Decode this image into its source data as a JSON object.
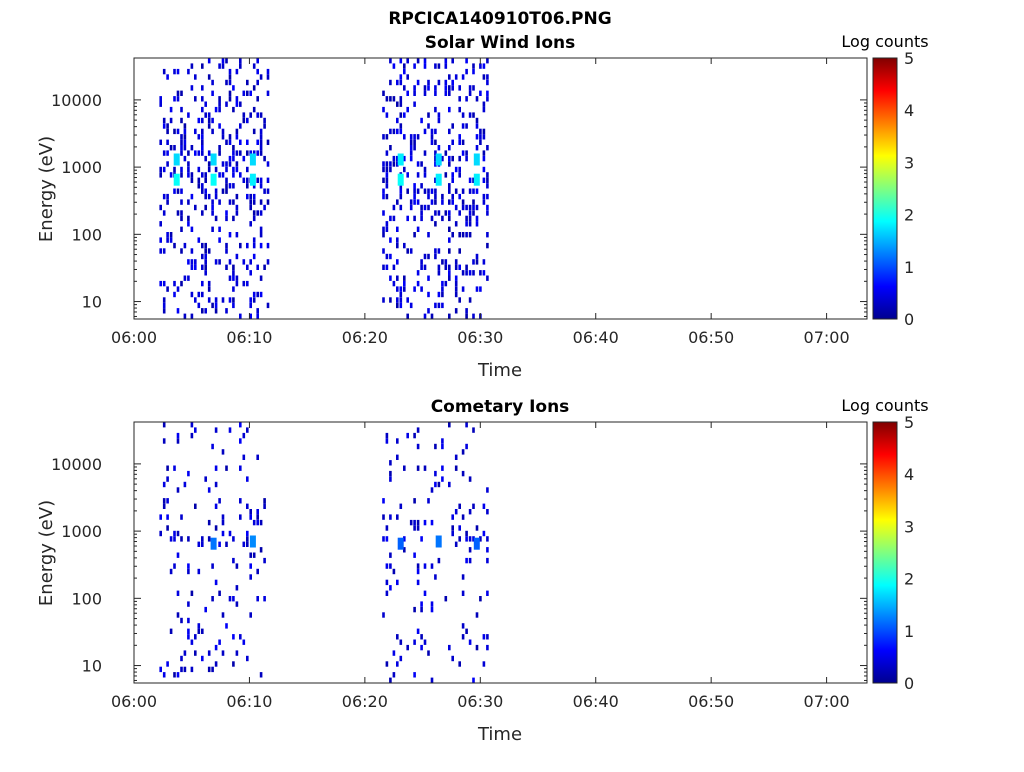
{
  "figure": {
    "title": "RPCICA140910T06.PNG"
  },
  "colorscale": {
    "stops": [
      "#00008f",
      "#0000ff",
      "#00ffff",
      "#ffff00",
      "#ff0000",
      "#800000"
    ],
    "label": "Log counts",
    "min": 0,
    "max": 5,
    "ticks": [
      0,
      1,
      2,
      3,
      4,
      5
    ]
  },
  "chart_data": [
    {
      "type": "heatmap",
      "title": "Solar Wind Ions",
      "xlabel": "Time",
      "ylabel": "Energy (eV)",
      "x_ticks": [
        "06:00",
        "06:10",
        "06:20",
        "06:30",
        "06:40",
        "06:50",
        "07:00"
      ],
      "x_range_minutes": [
        0,
        63.5
      ],
      "y_scale": "log",
      "y_ticks": [
        10,
        100,
        1000,
        10000
      ],
      "y_tick_labels": [
        "10",
        "100",
        "1000",
        "10000"
      ],
      "y_range": [
        5.5,
        42000
      ],
      "colorbar_label": "Log counts",
      "bursts": [
        {
          "start_min": 2.2,
          "end_min": 11.8
        },
        {
          "start_min": 21.5,
          "end_min": 30.8
        }
      ],
      "peaks": [
        {
          "time_min": 3.7,
          "energy_ev": 650,
          "log_counts": 1.9
        },
        {
          "time_min": 3.7,
          "energy_ev": 1300,
          "log_counts": 1.7
        },
        {
          "time_min": 6.9,
          "energy_ev": 650,
          "log_counts": 1.9
        },
        {
          "time_min": 6.9,
          "energy_ev": 1300,
          "log_counts": 1.7
        },
        {
          "time_min": 10.3,
          "energy_ev": 650,
          "log_counts": 1.8
        },
        {
          "time_min": 10.3,
          "energy_ev": 1300,
          "log_counts": 1.7
        },
        {
          "time_min": 23.1,
          "energy_ev": 650,
          "log_counts": 1.9
        },
        {
          "time_min": 23.1,
          "energy_ev": 1300,
          "log_counts": 1.8
        },
        {
          "time_min": 26.4,
          "energy_ev": 650,
          "log_counts": 1.8
        },
        {
          "time_min": 26.4,
          "energy_ev": 1300,
          "log_counts": 1.7
        },
        {
          "time_min": 29.7,
          "energy_ev": 650,
          "log_counts": 1.8
        },
        {
          "time_min": 29.7,
          "energy_ev": 1300,
          "log_counts": 1.7
        }
      ]
    },
    {
      "type": "heatmap",
      "title": "Cometary Ions",
      "xlabel": "Time",
      "ylabel": "Energy (eV)",
      "x_ticks": [
        "06:00",
        "06:10",
        "06:20",
        "06:30",
        "06:40",
        "06:50",
        "07:00"
      ],
      "x_range_minutes": [
        0,
        63.5
      ],
      "y_scale": "log",
      "y_ticks": [
        10,
        100,
        1000,
        10000
      ],
      "y_tick_labels": [
        "10",
        "100",
        "1000",
        "10000"
      ],
      "y_range": [
        5.5,
        42000
      ],
      "colorbar_label": "Log counts",
      "bursts": [
        {
          "start_min": 2.2,
          "end_min": 11.5
        },
        {
          "start_min": 21.5,
          "end_min": 30.8
        }
      ],
      "peaks": [
        {
          "time_min": 6.9,
          "energy_ev": 650,
          "log_counts": 1.2
        },
        {
          "time_min": 10.3,
          "energy_ev": 700,
          "log_counts": 1.3
        },
        {
          "time_min": 23.1,
          "energy_ev": 650,
          "log_counts": 1.1
        },
        {
          "time_min": 26.4,
          "energy_ev": 700,
          "log_counts": 1.2
        },
        {
          "time_min": 29.7,
          "energy_ev": 650,
          "log_counts": 1.1
        }
      ]
    }
  ]
}
